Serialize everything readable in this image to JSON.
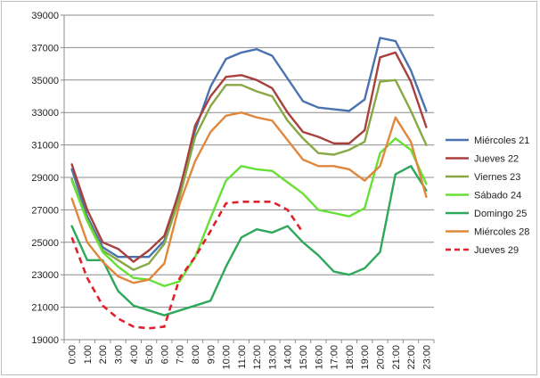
{
  "chart_data": {
    "type": "line",
    "title": "",
    "xlabel": "",
    "ylabel": "",
    "ylim": [
      19000,
      39000
    ],
    "yticks": [
      19000,
      21000,
      23000,
      25000,
      27000,
      29000,
      31000,
      33000,
      35000,
      37000,
      39000
    ],
    "grid": true,
    "legend": "right",
    "x": [
      "0:00",
      "1:00",
      "2:00",
      "3:00",
      "4:00",
      "5:00",
      "6:00",
      "7:00",
      "8:00",
      "9:00",
      "10:00",
      "11:00",
      "12:00",
      "13:00",
      "14:00",
      "15:00",
      "16:00",
      "17:00",
      "18:00",
      "19:00",
      "20:00",
      "21:00",
      "22:00",
      "23:00"
    ],
    "series": [
      {
        "name": "Miércoles 21",
        "color": "#4a72b0",
        "dashed": false,
        "values": [
          29500,
          26600,
          24700,
          24100,
          24100,
          24100,
          25100,
          28300,
          31900,
          34600,
          36300,
          36700,
          36900,
          36500,
          35100,
          33700,
          33300,
          33200,
          33100,
          33800,
          37600,
          37400,
          35600,
          33100
        ]
      },
      {
        "name": "Jueves 22",
        "color": "#a8403e",
        "dashed": false,
        "values": [
          29800,
          27000,
          25000,
          24600,
          23800,
          24500,
          25400,
          28200,
          32200,
          34000,
          35200,
          35300,
          35000,
          34500,
          33000,
          31800,
          31500,
          31100,
          31100,
          31900,
          36400,
          36700,
          34900,
          32100
        ]
      },
      {
        "name": "Viernes 23",
        "color": "#88a843",
        "dashed": false,
        "values": [
          28900,
          26400,
          24500,
          23900,
          23300,
          23700,
          24900,
          27800,
          31500,
          33400,
          34700,
          34700,
          34300,
          34000,
          32500,
          31400,
          30500,
          30400,
          30700,
          31200,
          34900,
          35000,
          33100,
          31000
        ]
      },
      {
        "name": "Sábado 24",
        "color": "#66e034",
        "dashed": false,
        "values": [
          28800,
          26300,
          24400,
          23500,
          22800,
          22700,
          22300,
          22600,
          24100,
          26500,
          28800,
          29700,
          29500,
          29400,
          28700,
          28000,
          27000,
          26800,
          26600,
          27100,
          30500,
          31400,
          30700,
          28600
        ]
      },
      {
        "name": "Domingo 25",
        "color": "#2ea85a",
        "dashed": false,
        "values": [
          26000,
          23900,
          23900,
          22000,
          21100,
          20800,
          20500,
          20800,
          21100,
          21400,
          23500,
          25300,
          25800,
          25600,
          26000,
          25000,
          24200,
          23200,
          23000,
          23400,
          24400,
          29200,
          29700,
          28200
        ]
      },
      {
        "name": "Miércoles 28",
        "color": "#e1873c",
        "dashed": false,
        "values": [
          27700,
          25000,
          23800,
          22900,
          22500,
          22700,
          23700,
          27400,
          30000,
          31800,
          32800,
          33000,
          32700,
          32500,
          31300,
          30100,
          29700,
          29700,
          29500,
          28800,
          29700,
          32700,
          31200,
          27800
        ]
      },
      {
        "name": "Jueves 29",
        "color": "#e0202a",
        "dashed": true,
        "values": [
          25300,
          22800,
          21100,
          20300,
          19800,
          19700,
          19800,
          22800,
          24100,
          25700,
          27400,
          27500,
          27500,
          27500,
          27000,
          25600,
          null,
          null,
          null,
          null,
          null,
          null,
          null,
          null
        ]
      }
    ]
  }
}
